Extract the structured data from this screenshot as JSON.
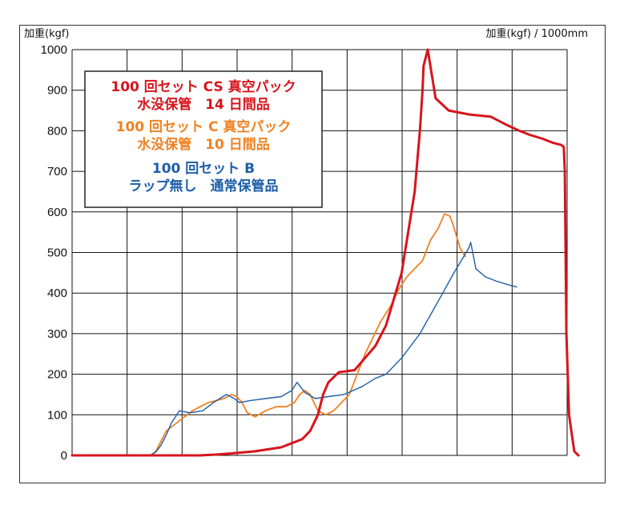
{
  "chart_data": {
    "type": "line",
    "ylabel": "加重(kgf)",
    "xlabel": "加重(kgf) / 1000mm",
    "ylim": [
      0,
      1000
    ],
    "y_ticks": [
      "1000",
      "900",
      "800",
      "700",
      "600",
      "500",
      "400",
      "300",
      "200",
      "100",
      "0"
    ],
    "xlim": [
      0,
      1000
    ],
    "grid": true,
    "legend_position": "top-left",
    "series": [
      {
        "name": "100 回セット CS 真空パック 水没保管　14 日間品",
        "legend_lines": [
          "100 回セット CS 真空パック",
          "水没保管　14 日間品"
        ],
        "color": "#d7141c",
        "x": [
          0,
          135,
          245,
          275,
          305,
          350,
          400,
          440,
          455,
          470,
          480,
          490,
          510,
          540,
          560,
          580,
          600,
          630,
          655,
          665,
          670,
          672,
          680,
          695,
          720,
          760,
          800,
          830,
          855,
          875,
          900,
          920,
          935,
          940,
          942,
          945,
          950,
          960,
          968
        ],
        "y": [
          0,
          0,
          0,
          2,
          5,
          10,
          20,
          40,
          60,
          100,
          150,
          180,
          205,
          210,
          240,
          270,
          320,
          450,
          650,
          800,
          900,
          960,
          1000,
          880,
          850,
          840,
          835,
          815,
          800,
          790,
          780,
          770,
          765,
          760,
          700,
          300,
          100,
          10,
          0
        ]
      },
      {
        "name": "100 回セット C 真空パック 水没保管　10 日間品",
        "legend_lines": [
          "100 回セット C 真空パック",
          "水没保管　10 日間品"
        ],
        "color": "#ef8222",
        "x": [
          150,
          160,
          168,
          180,
          200,
          230,
          260,
          290,
          305,
          315,
          325,
          335,
          350,
          370,
          390,
          410,
          425,
          435,
          445,
          455,
          470,
          485,
          500,
          515,
          530,
          545,
          560,
          575,
          590,
          610,
          625,
          640,
          655,
          670,
          685,
          700,
          712,
          722,
          728,
          735,
          742,
          752
        ],
        "y": [
          0,
          10,
          30,
          60,
          80,
          110,
          130,
          140,
          150,
          145,
          130,
          105,
          95,
          110,
          120,
          120,
          130,
          150,
          160,
          150,
          110,
          100,
          110,
          130,
          150,
          200,
          250,
          290,
          330,
          370,
          410,
          440,
          460,
          480,
          530,
          560,
          595,
          590,
          570,
          540,
          510,
          490
        ]
      },
      {
        "name": "100 回セット B ラップ無し　通常保管品",
        "legend_lines": [
          "100 回セット B",
          "ラップ無し　通常保管品"
        ],
        "color": "#1d5ea8",
        "x": [
          150,
          160,
          170,
          180,
          190,
          205,
          225,
          250,
          270,
          295,
          310,
          320,
          340,
          370,
          400,
          420,
          430,
          445,
          465,
          490,
          520,
          555,
          580,
          600,
          630,
          665,
          700,
          730,
          758,
          762,
          772,
          790,
          810,
          835,
          850
        ],
        "y": [
          0,
          8,
          25,
          50,
          80,
          110,
          105,
          110,
          130,
          150,
          140,
          130,
          135,
          140,
          145,
          160,
          180,
          155,
          140,
          145,
          150,
          170,
          190,
          200,
          240,
          300,
          380,
          450,
          510,
          525,
          460,
          440,
          430,
          420,
          415
        ]
      }
    ]
  },
  "colors": {
    "frame": "#333333",
    "grid": "#111111",
    "legend_border": "#222222"
  }
}
